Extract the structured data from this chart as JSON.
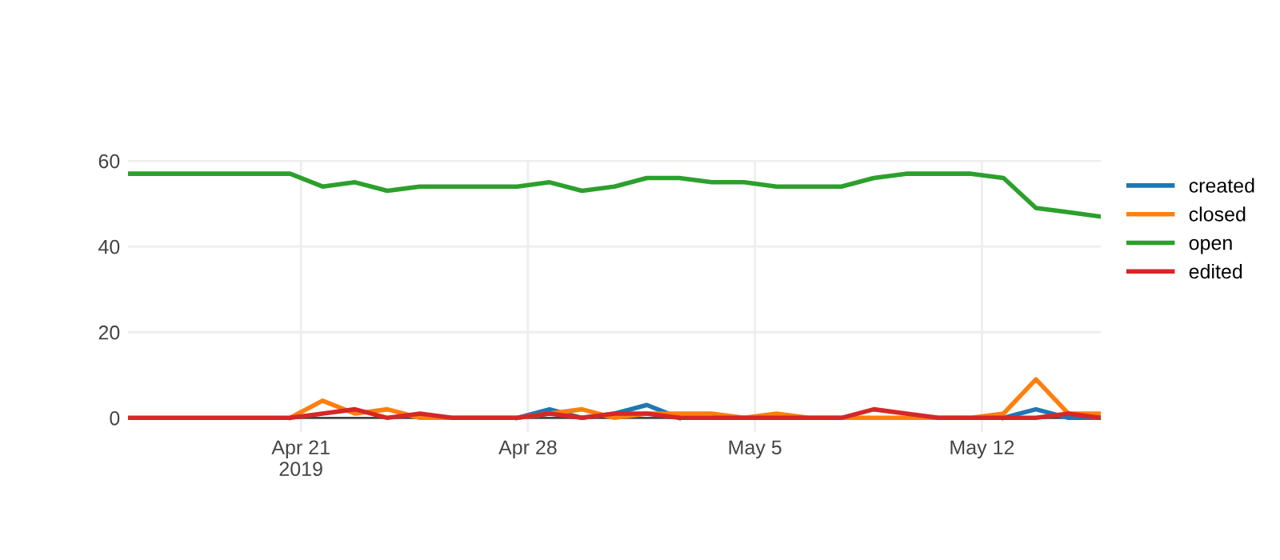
{
  "chart_data": {
    "type": "line",
    "x": [
      "2019-04-15T16:00",
      "2019-04-16T16:00",
      "2019-04-17T16:00",
      "2019-04-18T16:00",
      "2019-04-19T16:00",
      "2019-04-20T16:00",
      "2019-04-21T16:00",
      "2019-04-22T16:00",
      "2019-04-23T16:00",
      "2019-04-24T16:00",
      "2019-04-25T16:00",
      "2019-04-26T16:00",
      "2019-04-27T16:00",
      "2019-04-28T16:00",
      "2019-04-29T16:00",
      "2019-04-30T16:00",
      "2019-05-01T16:00",
      "2019-05-02T16:00",
      "2019-05-03T16:00",
      "2019-05-04T16:00",
      "2019-05-05T16:00",
      "2019-05-06T16:00",
      "2019-05-07T16:00",
      "2019-05-08T16:00",
      "2019-05-09T16:00",
      "2019-05-10T16:00",
      "2019-05-11T16:00",
      "2019-05-12T16:00",
      "2019-05-13T16:00",
      "2019-05-14T16:00",
      "2019-05-15T16:00"
    ],
    "series": [
      {
        "name": "created",
        "color": "#1f77b4",
        "values": [
          null,
          null,
          null,
          null,
          null,
          null,
          null,
          null,
          null,
          null,
          null,
          null,
          0,
          2,
          0,
          1,
          3,
          0,
          null,
          null,
          null,
          null,
          null,
          null,
          null,
          null,
          null,
          0,
          2,
          0,
          0
        ]
      },
      {
        "name": "closed",
        "color": "#ff7f0e",
        "values": [
          null,
          null,
          null,
          null,
          null,
          0,
          4,
          1,
          2,
          0,
          0,
          0,
          0,
          1,
          2,
          0,
          1,
          1,
          1,
          0,
          1,
          0,
          0,
          0,
          0,
          0,
          0,
          1,
          9,
          1,
          1
        ]
      },
      {
        "name": "open",
        "color": "#2ca02c",
        "values": [
          57,
          57,
          57,
          57,
          57,
          57,
          54,
          55,
          53,
          54,
          54,
          54,
          54,
          55,
          53,
          54,
          56,
          56,
          55,
          55,
          54,
          54,
          54,
          56,
          57,
          57,
          57,
          56,
          49,
          48,
          47
        ]
      },
      {
        "name": "edited",
        "color": "#d62728",
        "values": [
          0,
          0,
          0,
          0,
          0,
          0,
          1,
          2,
          0,
          1,
          0,
          0,
          0,
          1,
          0,
          1,
          1,
          0,
          0,
          0,
          0,
          0,
          0,
          2,
          1,
          0,
          0,
          0,
          0,
          1,
          0
        ]
      }
    ],
    "xlim": [
      "2019-04-15T16:00",
      "2019-05-15T16:00"
    ],
    "xticks": [
      {
        "value": "2019-04-21",
        "label": "Apr 21\n2019"
      },
      {
        "value": "2019-04-28",
        "label": "Apr 28"
      },
      {
        "value": "2019-05-05",
        "label": "May 5"
      },
      {
        "value": "2019-05-12",
        "label": "May 12"
      }
    ],
    "ylim": [
      -3.3,
      60.2
    ],
    "yticks": [
      0,
      20,
      40,
      60
    ],
    "grid": true,
    "legend": "top right",
    "marker": "none",
    "line_style": "solid"
  }
}
